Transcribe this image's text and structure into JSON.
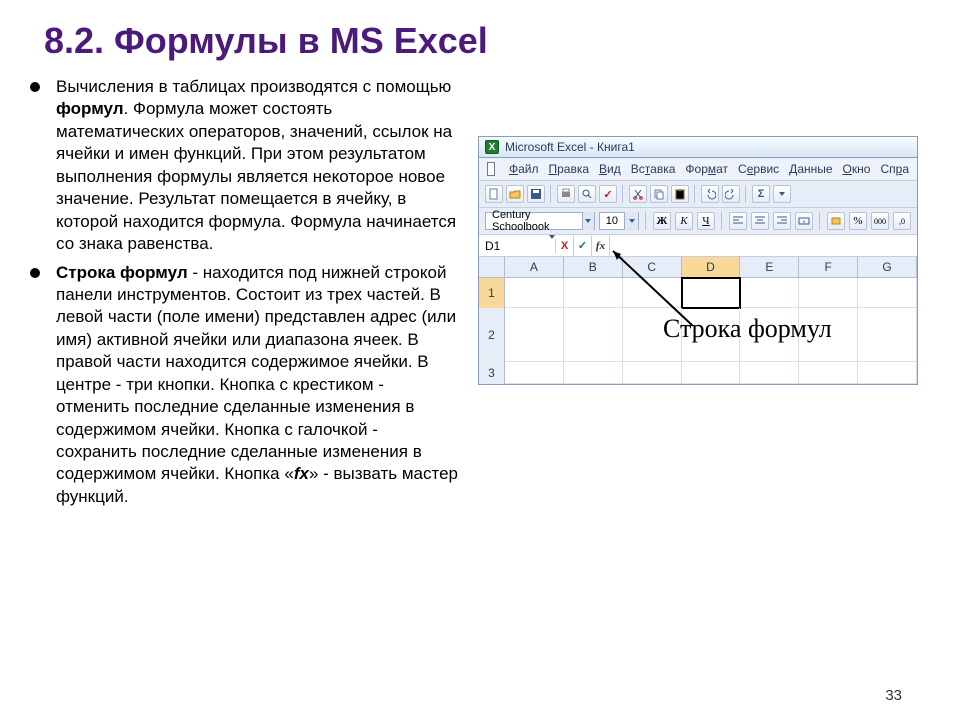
{
  "title": "8.2. Формулы в MS Excel",
  "bullets": [
    {
      "prefix": "Вычисления в таблицах производятся с помощью ",
      "bold1": "формул",
      "rest": ". Формула может состоять математических операторов, значений, ссылок на ячейки и имен функций. При этом результатом выполнения формулы является некоторое новое значение. Результат помещается в ячейку, в которой находится формула. Формула начинается со знака равенства."
    },
    {
      "bold_lead": "Строка формул",
      "after_lead": " - находится под нижней строкой панели инструментов. Состоит из трех частей. В левой части (поле имени) представлен адрес (или имя) активной ячейки или диапазона ячеек. В правой части находится содержимое ячейки. В центре - три кнопки. Кнопка с крестиком - отменить последние сделанные изменения в содержимом ячейки. Кнопка с галочкой - сохранить последние сделанные изменения в содержимом ячейки. Кнопка «",
      "bold_italic": "fx",
      "tail": "» - вызвать мастер функций."
    }
  ],
  "excel": {
    "title_text": "Microsoft Excel - Книга1",
    "menu": [
      "Файл",
      "Правка",
      "Вид",
      "Вставка",
      "Формат",
      "Сервис",
      "Данные",
      "Окно",
      "Спра"
    ],
    "menu_underline_idx": [
      0,
      0,
      0,
      2,
      3,
      1,
      0,
      0,
      2
    ],
    "font_name": "Century Schoolbook",
    "font_size": "10",
    "fmt_buttons": {
      "bold": "Ж",
      "italic": "К",
      "underline": "Ч"
    },
    "percent": "%",
    "thousand": "000",
    "active_cell": "D1",
    "col_headers": [
      "A",
      "B",
      "C",
      "D",
      "E",
      "F",
      "G"
    ],
    "active_col_index": 3,
    "row_headers": [
      "1",
      "2",
      "3"
    ],
    "active_row_index": 0,
    "annotation": "Строка формул"
  },
  "page_number": "33",
  "colors": {
    "title": "#4b1a7a",
    "excel_border": "#8a9db8",
    "arrow": "#000000"
  }
}
